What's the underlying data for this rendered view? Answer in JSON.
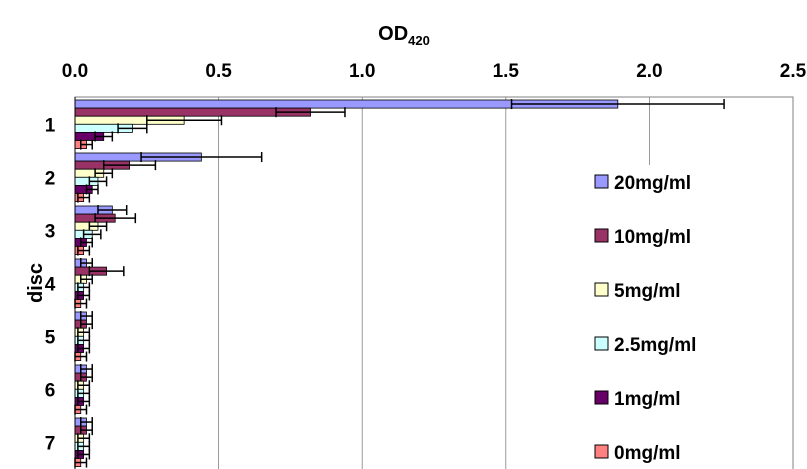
{
  "chart_data": {
    "type": "bar",
    "orientation": "horizontal",
    "title": "OD",
    "title_subscript": "420",
    "ylabel": "disc",
    "xlim": [
      0,
      2.5
    ],
    "x_ticks": [
      "0.0",
      "0.5",
      "1.0",
      "1.5",
      "2.0",
      "2.5"
    ],
    "x_axis_position": "top",
    "grid": "vertical lines at major ticks",
    "legend_position": "right",
    "categories": [
      "1",
      "2",
      "3",
      "4",
      "5",
      "6",
      "7"
    ],
    "series": [
      {
        "name": "20mg/ml",
        "color": "#9999FF",
        "values": [
          1.89,
          0.44,
          0.13,
          0.04,
          0.04,
          0.04,
          0.04
        ],
        "errors": [
          0.37,
          0.21,
          0.05,
          0.02,
          0.02,
          0.02,
          0.02
        ]
      },
      {
        "name": "10mg/ml",
        "color": "#993366",
        "values": [
          0.82,
          0.19,
          0.14,
          0.11,
          0.04,
          0.04,
          0.04
        ],
        "errors": [
          0.12,
          0.09,
          0.07,
          0.06,
          0.02,
          0.02,
          0.02
        ]
      },
      {
        "name": "5mg/ml",
        "color": "#FFFFCC",
        "values": [
          0.38,
          0.1,
          0.08,
          0.04,
          0.03,
          0.03,
          0.03
        ],
        "errors": [
          0.13,
          0.03,
          0.03,
          0.02,
          0.02,
          0.02,
          0.02
        ]
      },
      {
        "name": "2.5mg/ml",
        "color": "#CCFFFF",
        "values": [
          0.2,
          0.08,
          0.06,
          0.03,
          0.03,
          0.03,
          0.03
        ],
        "errors": [
          0.05,
          0.03,
          0.03,
          0.02,
          0.02,
          0.02,
          0.02
        ]
      },
      {
        "name": "1mg/ml",
        "color": "#660066",
        "values": [
          0.1,
          0.06,
          0.04,
          0.03,
          0.03,
          0.03,
          0.03
        ],
        "errors": [
          0.03,
          0.02,
          0.02,
          0.02,
          0.02,
          0.02,
          0.02
        ]
      },
      {
        "name": "0mg/ml",
        "color": "#FF8080",
        "values": [
          0.04,
          0.03,
          0.03,
          0.02,
          0.02,
          0.02,
          0.02
        ],
        "errors": [
          0.02,
          0.02,
          0.02,
          0.02,
          0.02,
          0.02,
          0.02
        ]
      }
    ]
  }
}
